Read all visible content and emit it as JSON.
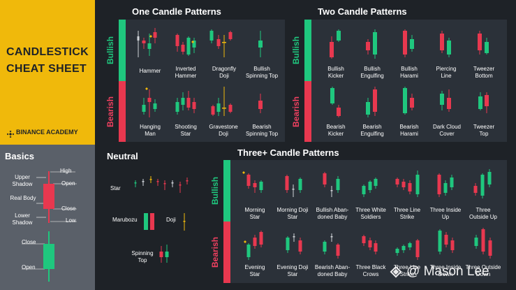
{
  "brand": {
    "title_line1": "CANDLESTICK",
    "title_line2": "CHEAT SHEET",
    "academy": "BINANCE ACADEMY"
  },
  "basics": {
    "title": "Basics",
    "upper_shadow": "Upper\nShadow",
    "real_body": "Real Body",
    "lower_shadow": "Lower\nShadow",
    "high": "High",
    "open_red": "Open",
    "close_red": "Close",
    "low": "Low",
    "close_green": "Close",
    "open_green": "Open"
  },
  "one_candle": {
    "title": "One Candle Patterns",
    "bullish_tab": "Bullish",
    "bearish_tab": "Bearish",
    "bullish": [
      "Hammer",
      "Inverted\nHammer",
      "Dragonfly\nDoji",
      "Bullish\nSpinning Top"
    ],
    "bearish": [
      "Hanging\nMan",
      "Shooting\nStar",
      "Gravestone\nDoji",
      "Bearish\nSpinning Top"
    ]
  },
  "two_candle": {
    "title": "Two Candle Patterns",
    "bullish_tab": "Bullish",
    "bearish_tab": "Bearish",
    "bullish": [
      "Bullish\nKicker",
      "Bullish\nEngulfing",
      "Bullish\nHarami",
      "Piercing\nLine",
      "Tweezer\nBottom"
    ],
    "bearish": [
      "Bearish\nKicker",
      "Bearish\nEngulfing",
      "Bearish\nHarami",
      "Dark Cloud\nCover",
      "Tweezer\nTop"
    ]
  },
  "neutral": {
    "title": "Neutral",
    "star": "Star",
    "marubozu": "Marubozu",
    "doji": "Doji",
    "spinning_top": "Spinning\nTop"
  },
  "three_candle": {
    "title": "Three+ Candle Patterns",
    "bullish_tab": "Bullish",
    "bearish_tab": "Bearish",
    "bullish": [
      "Morning\nStar",
      "Morning Doji\nStar",
      "Bullish Aban-\ndoned Baby",
      "Three White\nSoldiers",
      "Three Line\nStrike",
      "Three Inside\nUp",
      "Three\nOutside Up"
    ],
    "bearish": [
      "Evening\nStar",
      "Evening Doji\nStar",
      "Bearish Aban-\ndoned Baby",
      "Three Black\nCrows",
      "Three Line\nStrike",
      "Three Inside\nDown",
      "Three Outside\nDown"
    ]
  },
  "watermark": {
    "text": "@ Mason Lee"
  },
  "colors": {
    "bull": "#1fc77e",
    "bear": "#e8384f",
    "yellow": "#f0b90b",
    "panel": "#2b3139",
    "bg": "#1e2227"
  }
}
